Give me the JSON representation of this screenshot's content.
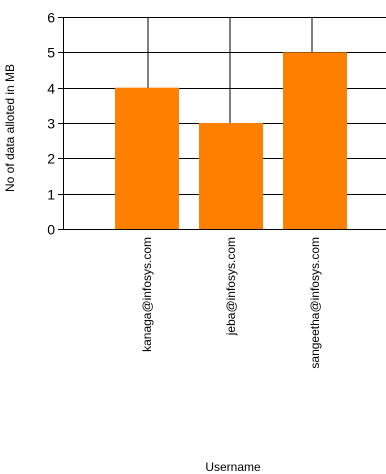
{
  "chart_data": {
    "type": "bar",
    "categories": [
      "kanaga@infosys.com",
      "jeba@infosys.com",
      "sangeetha@infosys.com"
    ],
    "values": [
      4,
      3,
      5
    ],
    "title": "",
    "xlabel": "Username",
    "ylabel": "No of data alloted in MB",
    "ylim": [
      0,
      6
    ],
    "yticks": [
      0,
      1,
      2,
      3,
      4,
      5,
      6
    ],
    "grid": true,
    "bar_color": "#ff8000",
    "axis_color": "#000000"
  }
}
